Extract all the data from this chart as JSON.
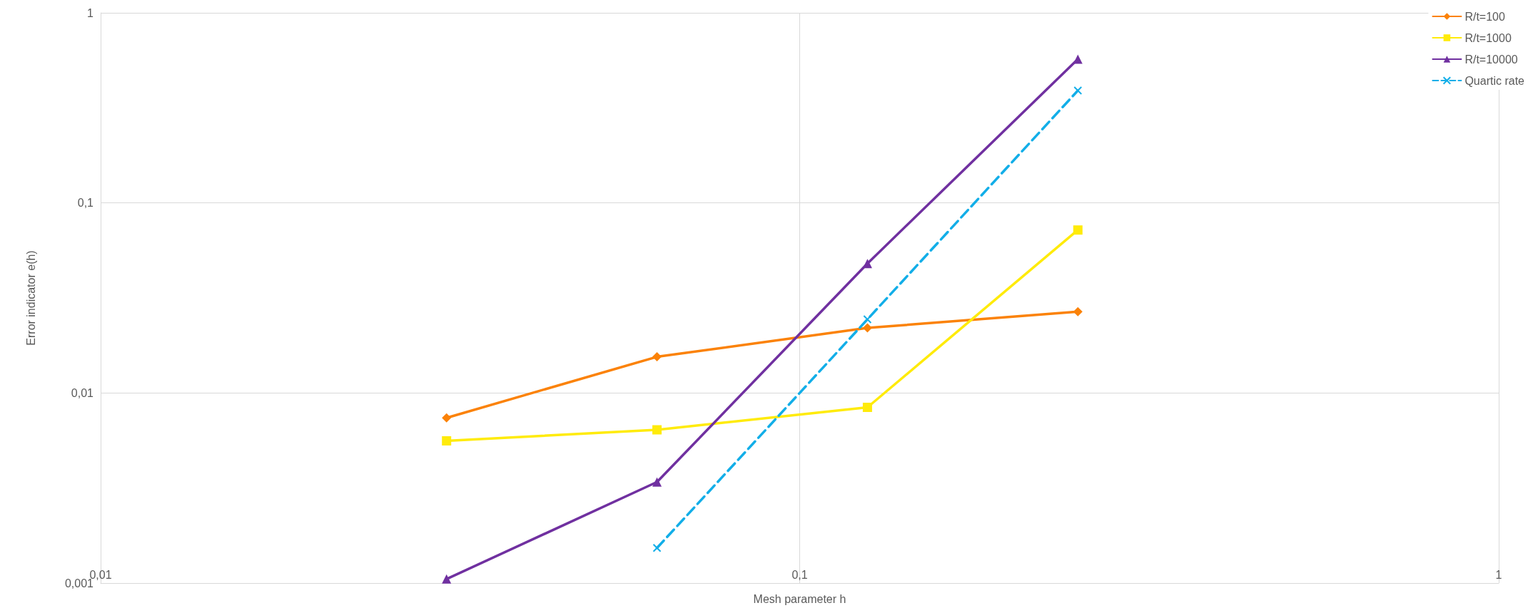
{
  "chart_data": {
    "type": "line",
    "xlabel": "Mesh parameter h",
    "ylabel": "Error indicator e(h)",
    "x": [
      0.03125,
      0.0625,
      0.125,
      0.25
    ],
    "series": [
      {
        "name": "R/t=100",
        "color": "#fb8208",
        "marker": "diamond",
        "line_style": "solid",
        "values": [
          0.0074,
          0.0155,
          0.022,
          0.0268
        ]
      },
      {
        "name": "R/t=1000",
        "color": "#ffeb0a",
        "marker": "square",
        "line_style": "solid",
        "values": [
          0.0056,
          0.0064,
          0.0084,
          0.072
        ]
      },
      {
        "name": "R/t=10000",
        "color": "#7030a0",
        "marker": "triangle",
        "line_style": "solid",
        "values": [
          0.00105,
          0.0034,
          0.048,
          0.57
        ]
      },
      {
        "name": "Quartic rate",
        "color": "#12aee8",
        "marker": "cross",
        "line_style": "dashed",
        "x": [
          0.0625,
          0.125,
          0.25
        ],
        "values": [
          0.00153,
          0.0244,
          0.39
        ]
      }
    ],
    "log": "xy",
    "xlim": [
      0.01,
      1
    ],
    "xticks": [
      {
        "value": 0.01,
        "label": "0,01"
      },
      {
        "value": 0.1,
        "label": "0,1"
      },
      1
    ],
    "ylim": [
      0.001,
      1
    ],
    "yticks": [
      {
        "value": 0.001,
        "label": "0,001"
      },
      {
        "value": 0.01,
        "label": "0,01"
      },
      {
        "value": 0.1,
        "label": "0,1"
      },
      1
    ],
    "grid": true,
    "legend": "top right"
  }
}
